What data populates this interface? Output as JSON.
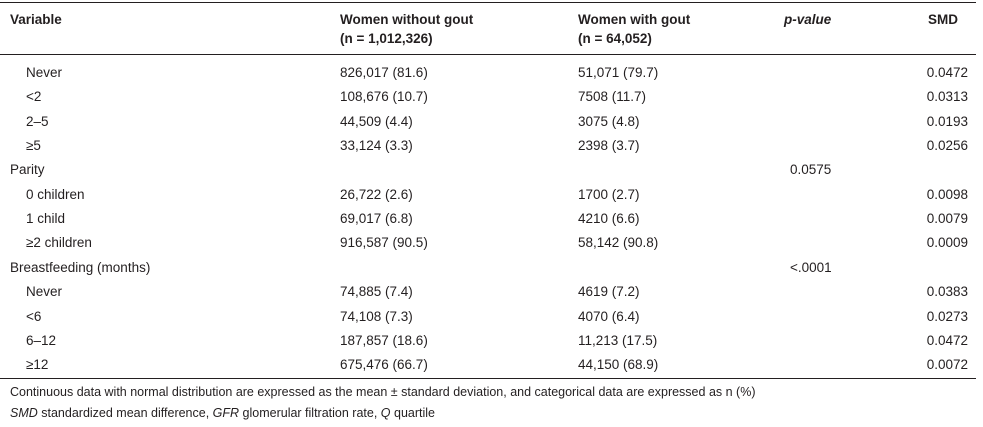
{
  "header": {
    "variable": "Variable",
    "women_without_gout": "Women without gout",
    "women_without_gout_n": "(n = 1,012,326)",
    "women_with_gout": "Women with gout",
    "women_with_gout_n": "(n = 64,052)",
    "p_value": "p-value",
    "smd": "SMD"
  },
  "rows": [
    {
      "label": "Never",
      "indent": true,
      "no_gout": "826,017 (81.6)",
      "gout": "51,071 (79.7)",
      "p": "",
      "smd": "0.0472"
    },
    {
      "label": "<2",
      "indent": true,
      "no_gout": "108,676 (10.7)",
      "gout": "7508 (11.7)",
      "p": "",
      "smd": "0.0313"
    },
    {
      "label": "2–5",
      "indent": true,
      "no_gout": "44,509 (4.4)",
      "gout": "3075 (4.8)",
      "p": "",
      "smd": "0.0193"
    },
    {
      "label": "≥5",
      "indent": true,
      "no_gout": "33,124 (3.3)",
      "gout": "2398 (3.7)",
      "p": "",
      "smd": "0.0256"
    },
    {
      "label": "Parity",
      "indent": false,
      "no_gout": "",
      "gout": "",
      "p": "0.0575",
      "smd": ""
    },
    {
      "label": "0 children",
      "indent": true,
      "no_gout": "26,722 (2.6)",
      "gout": "1700 (2.7)",
      "p": "",
      "smd": "0.0098"
    },
    {
      "label": "1 child",
      "indent": true,
      "no_gout": "69,017 (6.8)",
      "gout": "4210 (6.6)",
      "p": "",
      "smd": "0.0079"
    },
    {
      "label": "≥2 children",
      "indent": true,
      "no_gout": "916,587 (90.5)",
      "gout": "58,142 (90.8)",
      "p": "",
      "smd": "0.0009"
    },
    {
      "label": "Breastfeeding (months)",
      "indent": false,
      "no_gout": "",
      "gout": "",
      "p": "<.0001",
      "smd": ""
    },
    {
      "label": "Never",
      "indent": true,
      "no_gout": "74,885 (7.4)",
      "gout": "4619 (7.2)",
      "p": "",
      "smd": "0.0383"
    },
    {
      "label": "<6",
      "indent": true,
      "no_gout": "74,108 (7.3)",
      "gout": "4070 (6.4)",
      "p": "",
      "smd": "0.0273"
    },
    {
      "label": "6–12",
      "indent": true,
      "no_gout": "187,857 (18.6)",
      "gout": "11,213 (17.5)",
      "p": "",
      "smd": "0.0472"
    },
    {
      "label": "≥12",
      "indent": true,
      "no_gout": "675,476 (66.7)",
      "gout": "44,150 (68.9)",
      "p": "",
      "smd": "0.0072"
    }
  ],
  "footnotes": {
    "line1": "Continuous data with normal distribution are expressed as the mean ± standard deviation, and categorical data are expressed as n (%)",
    "line2_smd_abbr": "SMD",
    "line2_smd_def": " standardized mean difference, ",
    "line2_gfr_abbr": "GFR",
    "line2_gfr_def": " glomerular filtration rate, ",
    "line2_q_abbr": "Q",
    "line2_q_def": " quartile"
  }
}
